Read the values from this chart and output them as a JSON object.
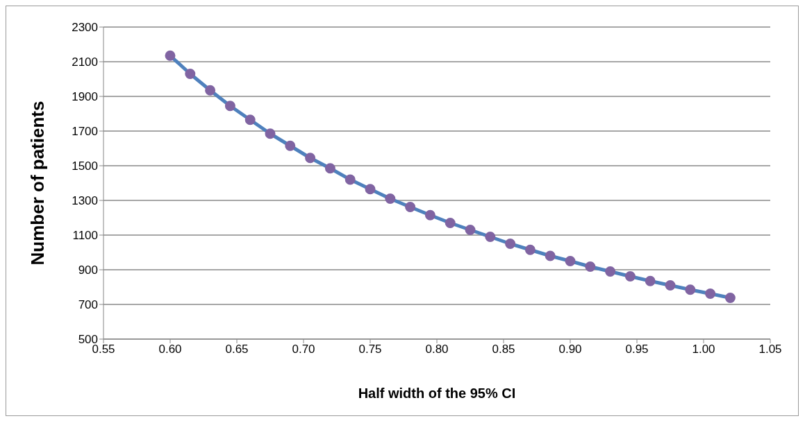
{
  "chart_data": {
    "type": "line",
    "xlabel": "Half width of the 95% CI",
    "ylabel": "Number of patients",
    "x": [
      0.6,
      0.615,
      0.63,
      0.645,
      0.66,
      0.675,
      0.69,
      0.705,
      0.72,
      0.735,
      0.75,
      0.765,
      0.78,
      0.795,
      0.81,
      0.825,
      0.84,
      0.855,
      0.87,
      0.885,
      0.9,
      0.915,
      0.93,
      0.945,
      0.96,
      0.975,
      0.99,
      1.005,
      1.02
    ],
    "series": [
      {
        "color": "#4f81bd",
        "values": [
          2135,
          2030,
          1935,
          1845,
          1765,
          1685,
          1615,
          1545,
          1485,
          1420,
          1365,
          1310,
          1262,
          1215,
          1170,
          1130,
          1090,
          1050,
          1015,
          980,
          950,
          918,
          890,
          862,
          835,
          810,
          785,
          762,
          738
        ]
      }
    ],
    "xlim": [
      0.55,
      1.05
    ],
    "xticks": [
      {
        "value": 0.55,
        "label": "0.55"
      },
      {
        "value": 0.6,
        "label": "0.60"
      },
      {
        "value": 0.65,
        "label": "0.65"
      },
      {
        "value": 0.7,
        "label": "0.70"
      },
      {
        "value": 0.75,
        "label": "0.75"
      },
      {
        "value": 0.8,
        "label": "0.80"
      },
      {
        "value": 0.85,
        "label": "0.85"
      },
      {
        "value": 0.9,
        "label": "0.90"
      },
      {
        "value": 0.95,
        "label": "0.95"
      },
      {
        "value": 1.0,
        "label": "1.00"
      },
      {
        "value": 1.05,
        "label": "1.05"
      }
    ],
    "ylim": [
      500,
      2300
    ],
    "yticks": [
      500,
      700,
      900,
      1100,
      1300,
      1500,
      1700,
      1900,
      2100,
      2300
    ],
    "grid": "y",
    "marker": "circle",
    "line_style": "solid",
    "legend": false
  }
}
